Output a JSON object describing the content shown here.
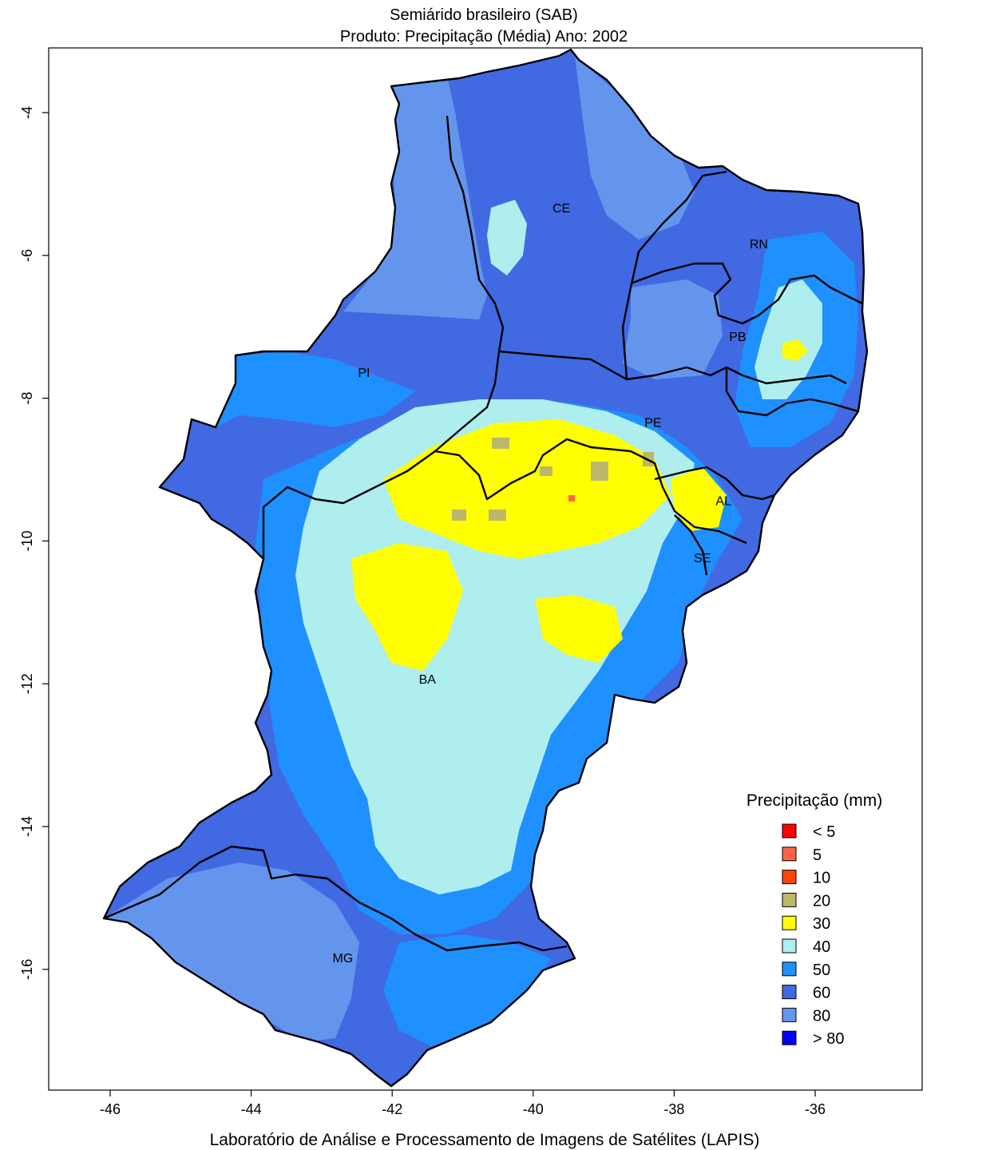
{
  "title": {
    "line1": "Semiárido brasileiro (SAB)",
    "line2": "Produto: Precipitação (Média)     Ano:  2002"
  },
  "axes": {
    "x_ticks": [
      "-46",
      "-44",
      "-42",
      "-40",
      "-38",
      "-36"
    ],
    "y_ticks": [
      "-4",
      "-6",
      "-8",
      "-10",
      "-12",
      "-14",
      "-16"
    ],
    "x_values": [
      -46,
      -44,
      -42,
      -40,
      -38,
      -36
    ],
    "y_values": [
      -4,
      -6,
      -8,
      -10,
      -12,
      -14,
      -16
    ]
  },
  "states": [
    {
      "label": "CE",
      "lon": -39.6,
      "lat": -5.4
    },
    {
      "label": "RN",
      "lon": -36.8,
      "lat": -5.9
    },
    {
      "label": "PB",
      "lon": -37.1,
      "lat": -7.2
    },
    {
      "label": "PI",
      "lon": -42.4,
      "lat": -7.7
    },
    {
      "label": "PE",
      "lon": -38.3,
      "lat": -8.4
    },
    {
      "label": "AL",
      "lon": -37.3,
      "lat": -9.5
    },
    {
      "label": "SE",
      "lon": -37.6,
      "lat": -10.3
    },
    {
      "label": "BA",
      "lon": -41.5,
      "lat": -12.0
    },
    {
      "label": "MG",
      "lon": -42.7,
      "lat": -15.9
    }
  ],
  "legend": {
    "title": "Precipitação (mm)",
    "items": [
      {
        "label": "< 5",
        "color": "#ff0000"
      },
      {
        "label": "5",
        "color": "#ff6347"
      },
      {
        "label": "10",
        "color": "#ff4500"
      },
      {
        "label": "20",
        "color": "#bdb76b"
      },
      {
        "label": "30",
        "color": "#ffff00"
      },
      {
        "label": "40",
        "color": "#aeeeee"
      },
      {
        "label": "50",
        "color": "#1e90ff"
      },
      {
        "label": "60",
        "color": "#4169e1"
      },
      {
        "label": "80",
        "color": "#6495ed"
      },
      {
        "label": "> 80",
        "color": "#0000ff"
      }
    ]
  },
  "credit": "Laboratório de Análise e Processamento de Imagens de Satélites (LAPIS)",
  "colors": {
    "c40": "#aeeeee",
    "c30": "#ffff00",
    "c20": "#bdb76b",
    "c50": "#1e90ff",
    "c60": "#4169e1",
    "c80": "#6495ed",
    "c5": "#ff6347",
    "border": "#000000"
  }
}
